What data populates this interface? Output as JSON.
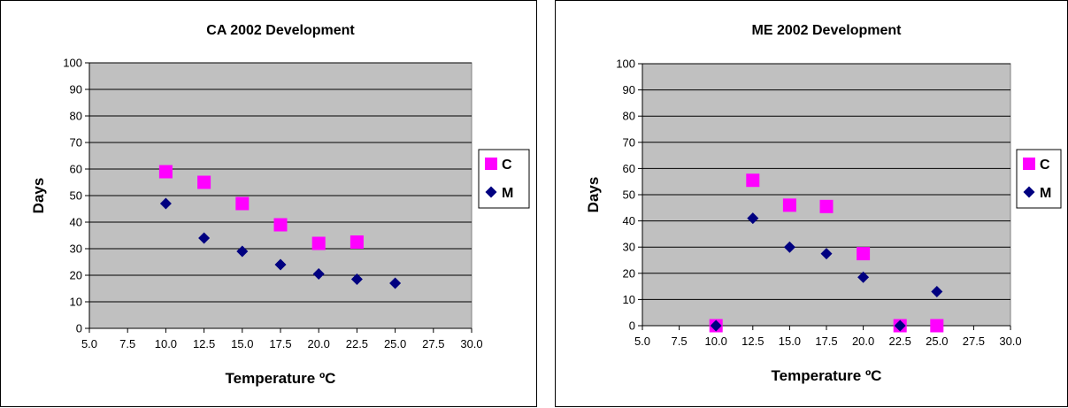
{
  "chart_data": [
    {
      "type": "scatter",
      "title": "CA 2002 Development",
      "xlabel": "Temperature ºC",
      "ylabel": "Days",
      "xlim": [
        5.0,
        30.0
      ],
      "ylim": [
        0,
        100
      ],
      "x_ticks": [
        "5.0",
        "7.5",
        "10.0",
        "12.5",
        "15.0",
        "17.5",
        "20.0",
        "22.5",
        "25.0",
        "27.5",
        "30.0"
      ],
      "y_ticks": [
        "0",
        "10",
        "20",
        "30",
        "40",
        "50",
        "60",
        "70",
        "80",
        "90",
        "100"
      ],
      "grid": true,
      "legend_position": "right",
      "series": [
        {
          "name": "C",
          "color": "#FF00FF",
          "marker": "square",
          "x": [
            10.0,
            12.5,
            15.0,
            17.5,
            20.0,
            22.5
          ],
          "y": [
            59,
            55,
            47,
            39,
            32,
            32.5
          ]
        },
        {
          "name": "M",
          "color": "#000080",
          "marker": "diamond",
          "x": [
            10.0,
            12.5,
            15.0,
            17.5,
            20.0,
            22.5,
            25.0
          ],
          "y": [
            47,
            34,
            29,
            24,
            20.5,
            18.5,
            17
          ]
        }
      ]
    },
    {
      "type": "scatter",
      "title": "ME 2002 Development",
      "xlabel": "Temperature ºC",
      "ylabel": "Days",
      "xlim": [
        5.0,
        30.0
      ],
      "ylim": [
        0,
        100
      ],
      "x_ticks": [
        "5.0",
        "7.5",
        "10.0",
        "12.5",
        "15.0",
        "17.5",
        "20.0",
        "22.5",
        "25.0",
        "27.5",
        "30.0"
      ],
      "y_ticks": [
        "0",
        "10",
        "20",
        "30",
        "40",
        "50",
        "60",
        "70",
        "80",
        "90",
        "100"
      ],
      "grid": true,
      "legend_position": "right",
      "series": [
        {
          "name": "C",
          "color": "#FF00FF",
          "marker": "square",
          "x": [
            10.0,
            12.5,
            15.0,
            17.5,
            20.0,
            22.5,
            25.0
          ],
          "y": [
            0,
            55.5,
            46,
            45.5,
            27.5,
            0,
            0
          ]
        },
        {
          "name": "M",
          "color": "#000080",
          "marker": "diamond",
          "x": [
            10.0,
            12.5,
            15.0,
            17.5,
            20.0,
            22.5,
            25.0
          ],
          "y": [
            0,
            41,
            30,
            27.5,
            18.5,
            0,
            13
          ]
        }
      ]
    }
  ],
  "colors": {
    "plot_area": "#C0C0C0",
    "gridline": "#000000"
  }
}
